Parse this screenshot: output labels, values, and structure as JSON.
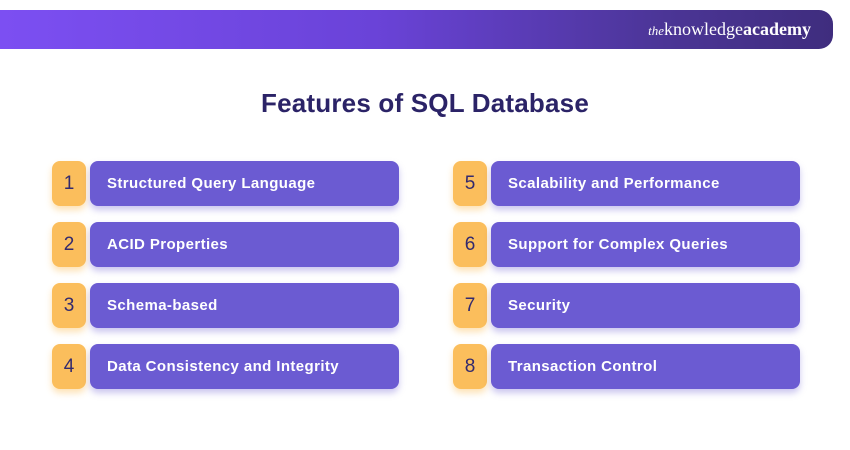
{
  "header": {
    "logo": {
      "the": "the",
      "knowledge": "knowledge",
      "academy": "academy"
    }
  },
  "title": "Features of SQL Database",
  "features": [
    {
      "number": "1",
      "label": "Structured Query Language"
    },
    {
      "number": "2",
      "label": "ACID Properties"
    },
    {
      "number": "3",
      "label": "Schema-based"
    },
    {
      "number": "4",
      "label": "Data Consistency and Integrity"
    },
    {
      "number": "5",
      "label": "Scalability and Performance"
    },
    {
      "number": "6",
      "label": "Support for Complex Queries"
    },
    {
      "number": "7",
      "label": "Security"
    },
    {
      "number": "8",
      "label": "Transaction Control"
    }
  ],
  "colors": {
    "header_gradient_start": "#7c4ff2",
    "header_gradient_end": "#3f2d7e",
    "title_text": "#2b2367",
    "feature_bar": "#6b5bd2",
    "feature_bar_text": "#ffffff",
    "number_badge": "#fbbe5c",
    "number_badge_text": "#332a6e",
    "background": "#ffffff"
  }
}
